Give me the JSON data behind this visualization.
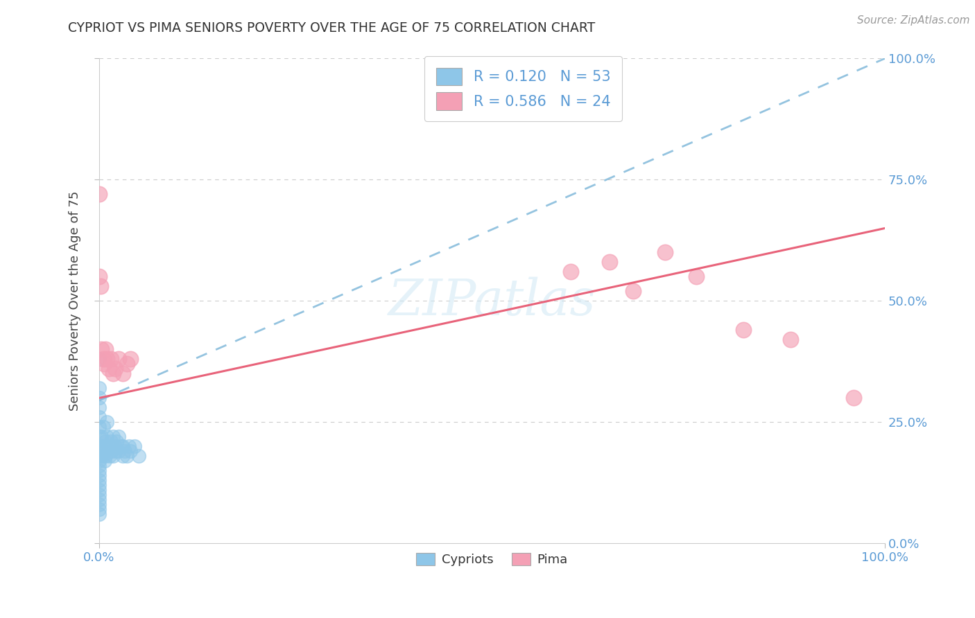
{
  "title": "CYPRIOT VS PIMA SENIORS POVERTY OVER THE AGE OF 75 CORRELATION CHART",
  "source": "Source: ZipAtlas.com",
  "ylabel": "Seniors Poverty Over the Age of 75",
  "legend_labels": [
    "Cypriots",
    "Pima"
  ],
  "r_cypriot": 0.12,
  "n_cypriot": 53,
  "r_pima": 0.586,
  "n_pima": 24,
  "background_color": "#ffffff",
  "grid_color": "#cccccc",
  "cypriot_color": "#8EC6E8",
  "pima_color": "#F4A0B5",
  "cypriot_line_color": "#7AB5D8",
  "pima_line_color": "#E8637A",
  "text_color": "#5B9BD5",
  "cypriot_scatter_x": [
    0.0,
    0.0,
    0.0,
    0.0,
    0.0,
    0.0,
    0.0,
    0.0,
    0.0,
    0.0,
    0.0,
    0.0,
    0.0,
    0.0,
    0.0,
    0.0,
    0.0,
    0.0,
    0.0,
    0.0,
    0.0,
    0.0,
    0.002,
    0.003,
    0.004,
    0.005,
    0.005,
    0.006,
    0.007,
    0.008,
    0.008,
    0.01,
    0.01,
    0.012,
    0.013,
    0.015,
    0.016,
    0.018,
    0.018,
    0.02,
    0.021,
    0.022,
    0.025,
    0.025,
    0.028,
    0.03,
    0.03,
    0.033,
    0.035,
    0.038,
    0.04,
    0.045,
    0.05
  ],
  "cypriot_scatter_y": [
    0.38,
    0.32,
    0.3,
    0.28,
    0.26,
    0.24,
    0.22,
    0.2,
    0.19,
    0.18,
    0.17,
    0.16,
    0.15,
    0.14,
    0.13,
    0.12,
    0.11,
    0.1,
    0.09,
    0.08,
    0.07,
    0.06,
    0.2,
    0.22,
    0.18,
    0.24,
    0.2,
    0.19,
    0.17,
    0.21,
    0.18,
    0.25,
    0.22,
    0.2,
    0.18,
    0.21,
    0.19,
    0.22,
    0.18,
    0.2,
    0.19,
    0.21,
    0.19,
    0.22,
    0.2,
    0.18,
    0.2,
    0.19,
    0.18,
    0.2,
    0.19,
    0.2,
    0.18
  ],
  "pima_scatter_x": [
    0.0,
    0.0,
    0.002,
    0.003,
    0.005,
    0.006,
    0.008,
    0.01,
    0.012,
    0.015,
    0.018,
    0.02,
    0.025,
    0.03,
    0.035,
    0.04,
    0.6,
    0.65,
    0.68,
    0.72,
    0.76,
    0.82,
    0.88,
    0.96
  ],
  "pima_scatter_y": [
    0.72,
    0.55,
    0.53,
    0.4,
    0.38,
    0.37,
    0.4,
    0.38,
    0.36,
    0.38,
    0.35,
    0.36,
    0.38,
    0.35,
    0.37,
    0.38,
    0.56,
    0.58,
    0.52,
    0.6,
    0.55,
    0.44,
    0.42,
    0.3
  ],
  "cypriot_line_x0": 0.0,
  "cypriot_line_y0": 0.295,
  "cypriot_line_x1": 1.0,
  "cypriot_line_y1": 1.0,
  "pima_line_x0": 0.0,
  "pima_line_y0": 0.3,
  "pima_line_x1": 1.0,
  "pima_line_y1": 0.65,
  "xlim": [
    0.0,
    1.0
  ],
  "ylim": [
    0.0,
    1.0
  ],
  "x_ticks": [
    0.0,
    1.0
  ],
  "y_ticks": [
    0.0,
    0.25,
    0.5,
    0.75,
    1.0
  ]
}
